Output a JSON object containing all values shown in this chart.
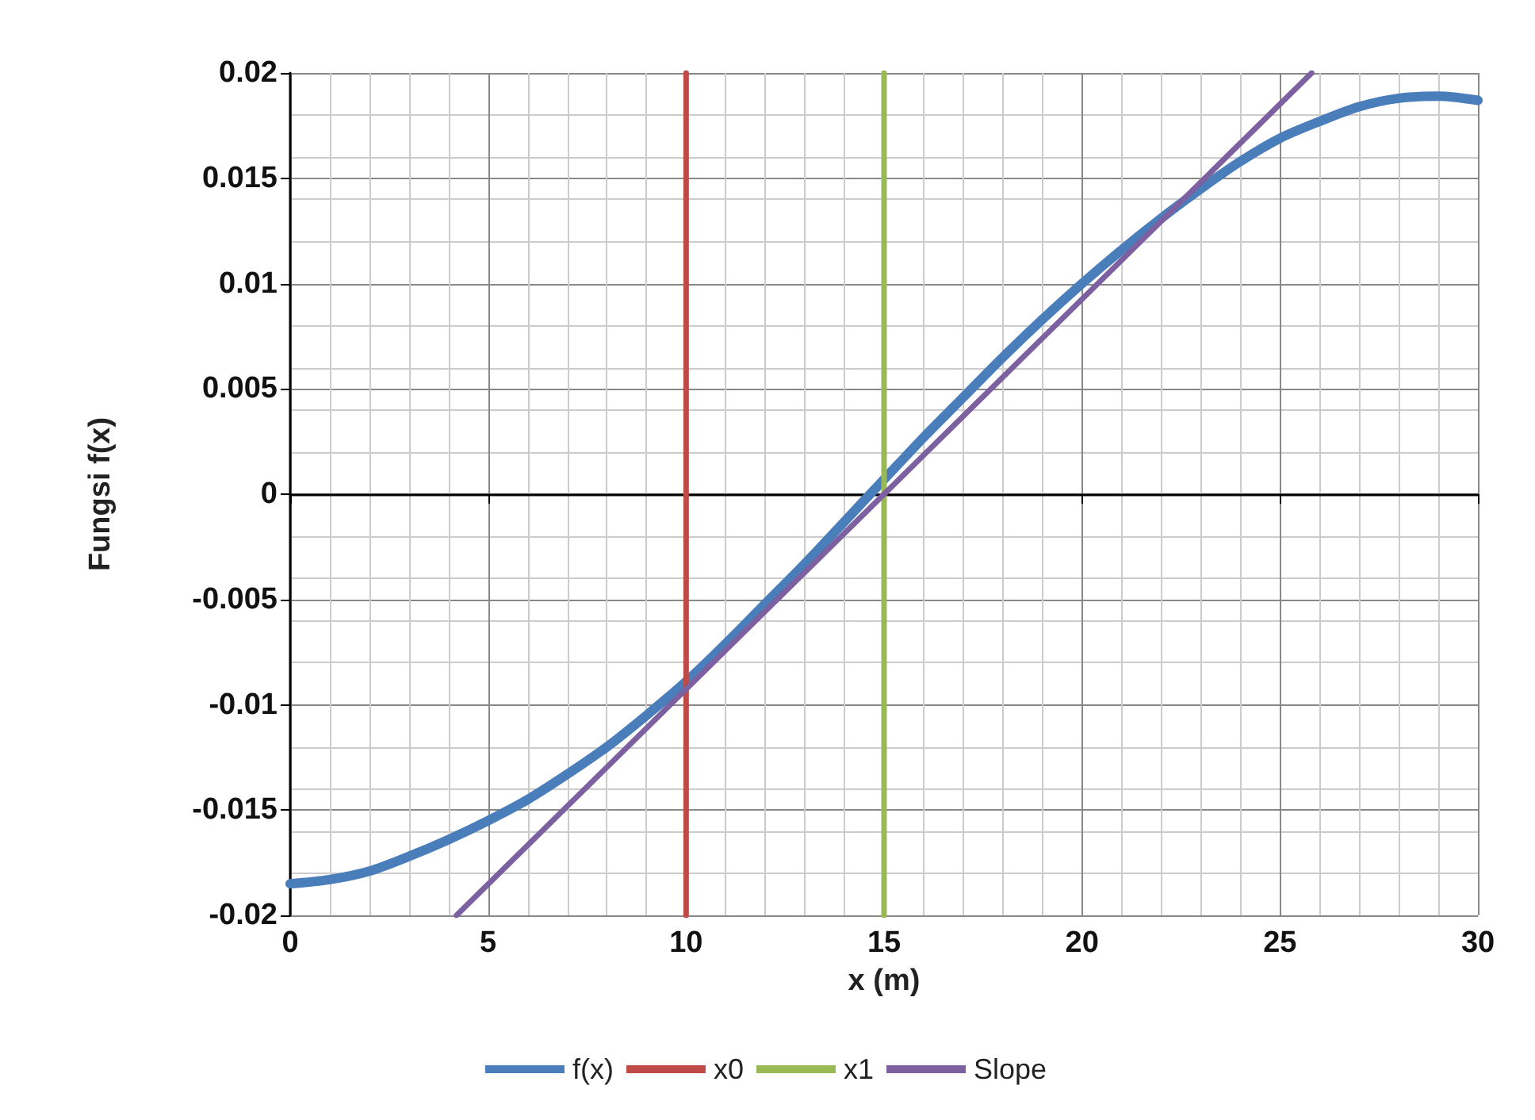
{
  "chart_data": {
    "type": "line",
    "xlabel": "x (m)",
    "ylabel": "Fungsi f(x)",
    "xlim": [
      0,
      30
    ],
    "xticks": [
      0,
      5,
      10,
      15,
      20,
      25,
      30
    ],
    "ylim": [
      -0.02,
      0.02
    ],
    "yticks": [
      -0.02,
      -0.015,
      -0.01,
      -0.005,
      0,
      0.005,
      0.01,
      0.015,
      0.02
    ],
    "grid": true,
    "legend": "bottom",
    "marker": "none",
    "line_style": "solid",
    "series": [
      {
        "name": "f(x)",
        "color": "#4a7ebb",
        "x": [
          0,
          1,
          2,
          3,
          4,
          5,
          6,
          7,
          8,
          9,
          10,
          11,
          12,
          13,
          14,
          15,
          16,
          17,
          18,
          19,
          20,
          21,
          22,
          23,
          24,
          25,
          26,
          27,
          28,
          29,
          30
        ],
        "values": [
          -0.0185,
          -0.0183,
          -0.0179,
          -0.0172,
          -0.0164,
          -0.0155,
          -0.0145,
          -0.0133,
          -0.012,
          -0.0105,
          -0.0089,
          -0.0071,
          -0.0052,
          -0.0033,
          -0.0013,
          0.0007,
          0.0027,
          0.0046,
          0.0065,
          0.0083,
          0.01,
          0.0116,
          0.0131,
          0.0145,
          0.0158,
          0.0169,
          0.0177,
          0.0184,
          0.0188,
          0.0189,
          0.0187
        ]
      },
      {
        "name": "x0",
        "color": "#be4b48",
        "x": [
          10,
          10
        ],
        "values": [
          -0.02,
          0.02
        ]
      },
      {
        "name": "x1",
        "color": "#98b954",
        "x": [
          15,
          15
        ],
        "values": [
          -0.02,
          0.02
        ]
      },
      {
        "name": "Slope",
        "color": "#7d60a0",
        "x": [
          4.2,
          25.8
        ],
        "values": [
          -0.02,
          0.02
        ]
      }
    ]
  }
}
